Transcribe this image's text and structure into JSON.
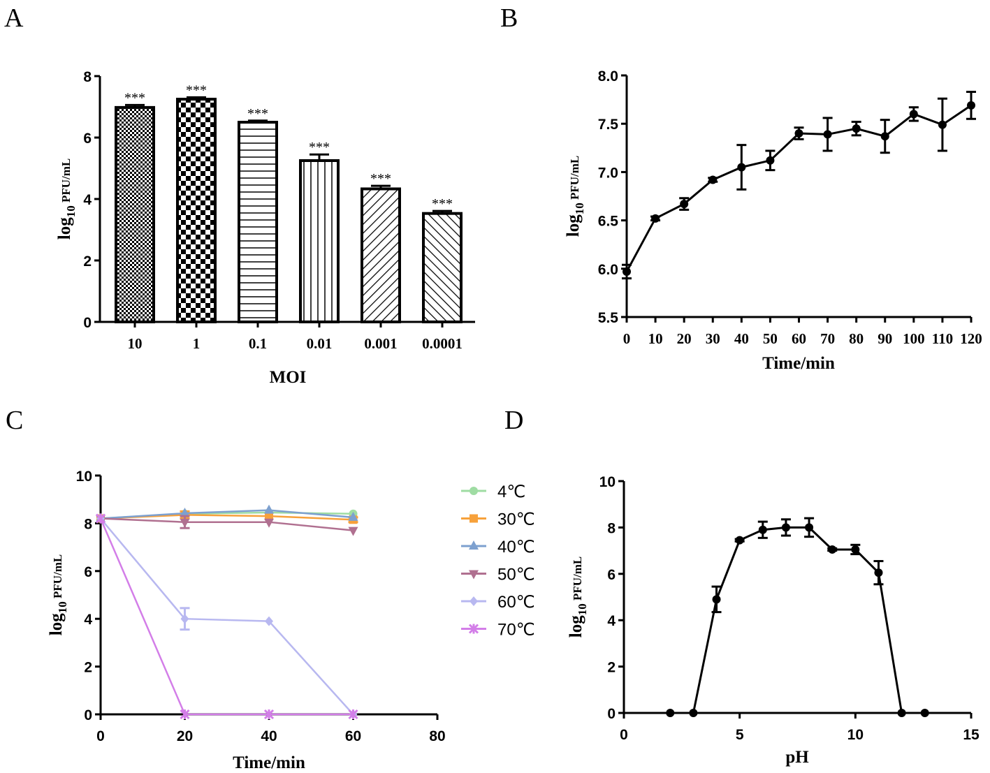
{
  "chart_data": [
    {
      "panel": "A",
      "type": "bar",
      "categories": [
        "10",
        "1",
        "0.1",
        "0.01",
        "0.001",
        "0.0001"
      ],
      "values": [
        6.98,
        7.25,
        6.5,
        5.25,
        4.33,
        3.53
      ],
      "errors": [
        0.08,
        0.06,
        0.05,
        0.2,
        0.1,
        0.08
      ],
      "annotations": [
        "***",
        "***",
        "***",
        "***",
        "***",
        "***"
      ],
      "xlabel": "MOI",
      "ylabel": "log10 PFU/mL",
      "ylim": [
        0,
        8
      ],
      "yticks": [
        "0",
        "2",
        "4",
        "6",
        "8"
      ]
    },
    {
      "panel": "B",
      "type": "line",
      "x": [
        0,
        10,
        20,
        30,
        40,
        50,
        60,
        70,
        80,
        90,
        100,
        110,
        120
      ],
      "values": [
        5.97,
        6.52,
        6.67,
        6.92,
        7.05,
        7.12,
        7.4,
        7.39,
        7.45,
        7.37,
        7.6,
        7.49,
        7.69
      ],
      "errors": [
        0.07,
        0.02,
        0.06,
        0.02,
        0.23,
        0.1,
        0.06,
        0.17,
        0.07,
        0.17,
        0.07,
        0.27,
        0.14
      ],
      "xlabel": "Time/min",
      "ylabel": "log10 PFU/mL",
      "ylim": [
        5.5,
        8.0
      ],
      "xlim": [
        0,
        120
      ],
      "yticks": [
        "5.5",
        "6.0",
        "6.5",
        "7.0",
        "7.5",
        "8.0"
      ],
      "xticks": [
        "0",
        "10",
        "20",
        "30",
        "40",
        "50",
        "60",
        "70",
        "80",
        "90",
        "100",
        "110",
        "120"
      ]
    },
    {
      "panel": "C",
      "type": "line",
      "x": [
        0,
        20,
        40,
        60
      ],
      "xlim": [
        0,
        80
      ],
      "ylim": [
        0,
        10
      ],
      "xticks": [
        "0",
        "20",
        "40",
        "60",
        "80"
      ],
      "yticks": [
        "0",
        "2",
        "4",
        "6",
        "8",
        "10"
      ],
      "xlabel": "Time/min",
      "ylabel": "log10 PFU/mL",
      "legend": "right",
      "series": [
        {
          "name": "4℃",
          "values": [
            8.2,
            8.4,
            8.45,
            8.4
          ],
          "errors": [
            0,
            0,
            0,
            0
          ],
          "color": "#9fdca3",
          "marker": "circle"
        },
        {
          "name": "30℃",
          "values": [
            8.2,
            8.35,
            8.3,
            8.15
          ],
          "errors": [
            0,
            0.15,
            0,
            0.1
          ],
          "color": "#f7a13b",
          "marker": "square"
        },
        {
          "name": "40℃",
          "values": [
            8.2,
            8.42,
            8.55,
            8.25
          ],
          "errors": [
            0,
            0,
            0,
            0
          ],
          "color": "#7da0cf",
          "marker": "triangle"
        },
        {
          "name": "50℃",
          "values": [
            8.2,
            8.05,
            8.05,
            7.7
          ],
          "errors": [
            0,
            0.25,
            0,
            0
          ],
          "color": "#b07090",
          "marker": "triangle-down"
        },
        {
          "name": "60℃",
          "values": [
            8.2,
            4.0,
            3.9,
            0
          ],
          "errors": [
            0,
            0.45,
            0,
            0
          ],
          "color": "#b8b8f0",
          "marker": "diamond"
        },
        {
          "name": "70℃",
          "values": [
            8.2,
            0,
            0,
            0
          ],
          "errors": [
            0,
            0,
            0,
            0
          ],
          "color": "#d37ee8",
          "marker": "star"
        }
      ]
    },
    {
      "panel": "D",
      "type": "line",
      "x": [
        2,
        3,
        4,
        5,
        6,
        7,
        8,
        9,
        10,
        11,
        12,
        13
      ],
      "values": [
        0,
        0,
        4.9,
        7.45,
        7.9,
        8.0,
        8.0,
        7.05,
        7.05,
        6.05,
        0,
        0
      ],
      "errors": [
        0,
        0,
        0.55,
        0.05,
        0.35,
        0.35,
        0.4,
        0.05,
        0.2,
        0.5,
        0,
        0
      ],
      "xlabel": "pH",
      "ylabel": "log10 PFU/mL",
      "xlim": [
        0,
        15
      ],
      "ylim": [
        0,
        10
      ],
      "xticks": [
        "0",
        "5",
        "10",
        "15"
      ],
      "yticks": [
        "0",
        "2",
        "4",
        "6",
        "8",
        "10"
      ]
    }
  ]
}
